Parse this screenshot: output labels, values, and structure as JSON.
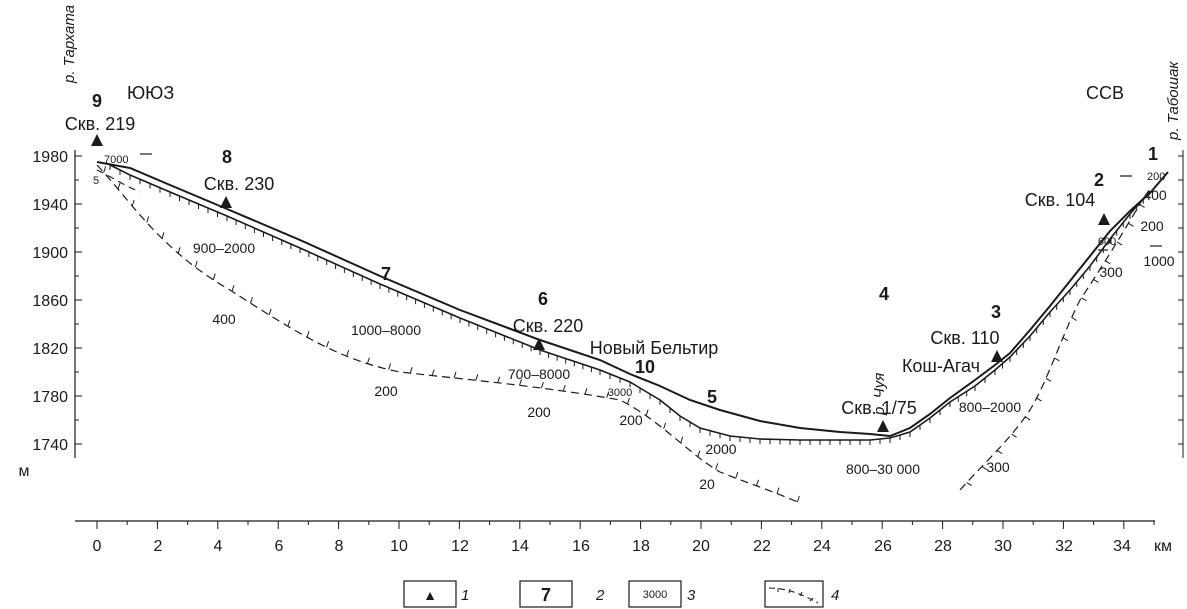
{
  "directions": {
    "left": "ЮЮЗ",
    "right": "ССВ"
  },
  "axes": {
    "y_unit": "м",
    "x_unit": "км",
    "y_ticks": [
      "1980",
      "1940",
      "1900",
      "1860",
      "1820",
      "1780",
      "1740"
    ],
    "x_ticks": [
      "0",
      "2",
      "4",
      "6",
      "8",
      "10",
      "12",
      "14",
      "16",
      "18",
      "20",
      "22",
      "24",
      "26",
      "28",
      "30",
      "32",
      "34"
    ]
  },
  "rivers": {
    "left": "р. Тархата",
    "middle": "р. Чуя",
    "right": "р. Табошак"
  },
  "wells": {
    "w219": {
      "num": "9",
      "label": "Скв. 219"
    },
    "w230": {
      "num": "8",
      "label": "Скв. 230"
    },
    "w220": {
      "num": "6",
      "label": "Скв. 220"
    },
    "w175": {
      "label": "Скв. 1/75"
    },
    "w110": {
      "num": "3",
      "label": "Скв. 110"
    },
    "w104": {
      "num": "2",
      "label": "Скв. 104"
    }
  },
  "places": {
    "novy_beltir": "Новый Бельтир",
    "kosh_agach": "Кош-Агач"
  },
  "section_numbers": {
    "n1": "1",
    "n4": "4",
    "n5": "5",
    "n7": "7",
    "n10": "10"
  },
  "values": {
    "v7000": "7000",
    "v5": "5",
    "v900_2000": "900–2000",
    "v400a": "400",
    "v1000_8000": "1000–8000",
    "v200a": "200",
    "v700_8000": "700–8000",
    "v3000": "3000",
    "v200b": "200",
    "v200c": "200",
    "v2000": "2000",
    "v20": "20",
    "v800_30000": "800–30 000",
    "v800_2000": "800–2000",
    "v300a": "300",
    "v600": "600",
    "v300b": "300",
    "v200d": "200",
    "v400b": "400",
    "v200e": "200",
    "v1000": "1000"
  },
  "legend": {
    "items": [
      {
        "symbol": "▲",
        "index": "1"
      },
      {
        "symbol": "7",
        "index": "2"
      },
      {
        "symbol": "3000",
        "index": "3"
      },
      {
        "symbol": "",
        "index": "4"
      }
    ]
  }
}
